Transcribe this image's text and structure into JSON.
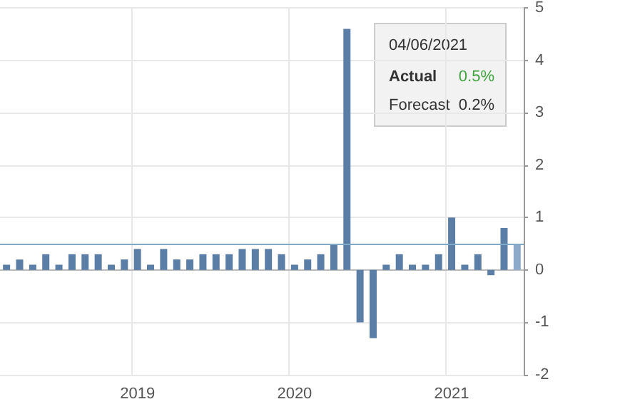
{
  "chart_data": {
    "type": "bar",
    "categories": [
      null,
      null,
      null,
      null,
      null,
      null,
      null,
      null,
      null,
      null,
      "2019",
      null,
      null,
      null,
      null,
      null,
      null,
      null,
      null,
      null,
      null,
      null,
      "2020",
      null,
      null,
      null,
      null,
      null,
      null,
      null,
      null,
      null,
      null,
      null,
      "2021",
      null,
      null,
      null,
      null,
      null
    ],
    "values": [
      0.1,
      0.2,
      0.1,
      0.3,
      0.1,
      0.3,
      0.3,
      0.3,
      0.1,
      0.2,
      0.4,
      0.1,
      0.4,
      0.2,
      0.2,
      0.3,
      0.3,
      0.3,
      0.4,
      0.4,
      0.4,
      0.3,
      0.1,
      0.2,
      0.3,
      0.5,
      4.6,
      -1.0,
      -1.3,
      0.1,
      0.3,
      0.1,
      0.1,
      0.3,
      1.0,
      0.1,
      0.3,
      -0.1,
      0.8,
      0.5
    ],
    "colors": [
      "#5b7ea6",
      "#5b7ea6",
      "#5b7ea6",
      "#5b7ea6",
      "#5b7ea6",
      "#5b7ea6",
      "#5b7ea6",
      "#5b7ea6",
      "#5b7ea6",
      "#5b7ea6",
      "#5b7ea6",
      "#5b7ea6",
      "#5b7ea6",
      "#5b7ea6",
      "#5b7ea6",
      "#5b7ea6",
      "#5b7ea6",
      "#5b7ea6",
      "#5b7ea6",
      "#5b7ea6",
      "#5b7ea6",
      "#5b7ea6",
      "#5b7ea6",
      "#5b7ea6",
      "#5b7ea6",
      "#5b7ea6",
      "#5b7ea6",
      "#5b7ea6",
      "#5b7ea6",
      "#5b7ea6",
      "#5b7ea6",
      "#5b7ea6",
      "#5b7ea6",
      "#5b7ea6",
      "#5b7ea6",
      "#5b7ea6",
      "#5b7ea6",
      "#5b7ea6",
      "#5b7ea6",
      "#8eaacb"
    ],
    "ylim": [
      -2,
      5
    ],
    "yticks": [
      -2,
      -1,
      0,
      1,
      2,
      3,
      4,
      5
    ],
    "ref_lines": [
      {
        "axis": "y",
        "value": 0.5,
        "color": "#7fa9c9"
      }
    ],
    "annotations": [
      "04/06/2021",
      "Actual",
      "0.5%",
      "Forecast",
      "0.2%"
    ],
    "grid": true
  }
}
